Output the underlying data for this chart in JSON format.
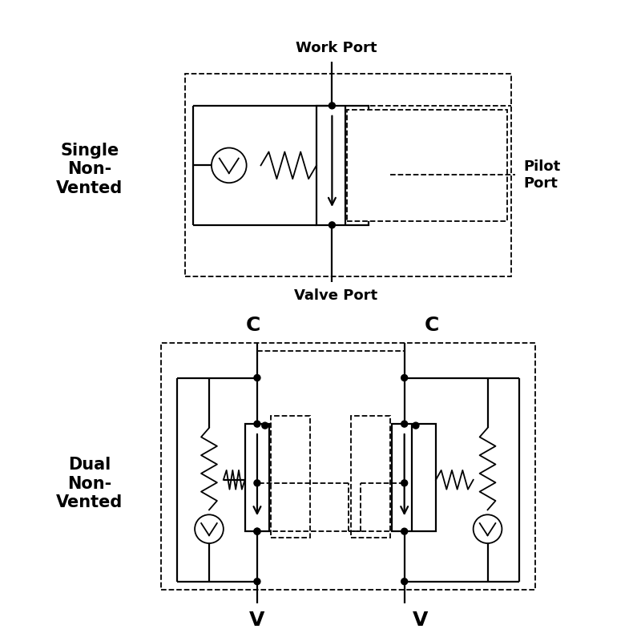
{
  "bg_color": "#ffffff",
  "lc": "#000000",
  "lw": 1.6,
  "lw_d": 1.3,
  "dot_r": 0.04,
  "single_label": "Single\nNon-\nVented",
  "dual_label": "Dual\nNon-\nVented",
  "work_port_label": "Work Port",
  "valve_port_label": "Valve Port",
  "pilot_port_label": "Pilot\nPort",
  "c_label": "C",
  "v_label": "V",
  "fs_main": 15,
  "fs_port": 13,
  "fs_cv": 18
}
